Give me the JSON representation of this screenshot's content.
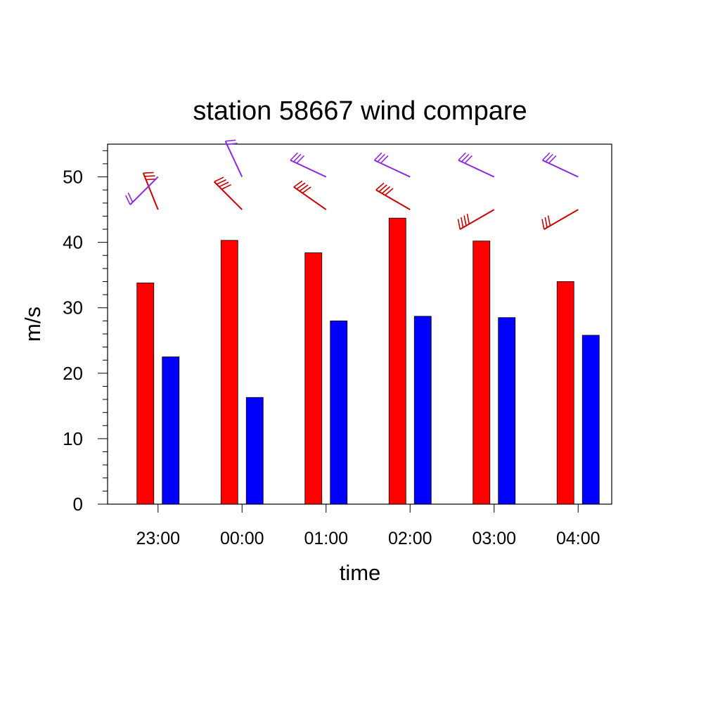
{
  "chart_data": {
    "type": "bar",
    "title": "station 58667 wind compare",
    "xlabel": "time",
    "ylabel": "m/s",
    "categories": [
      "23:00",
      "00:00",
      "01:00",
      "02:00",
      "03:00",
      "04:00"
    ],
    "ylim": [
      0,
      55
    ],
    "yticks": [
      0,
      10,
      20,
      30,
      40,
      50
    ],
    "grid": false,
    "legend": "none",
    "series": [
      {
        "color": "#ff0000",
        "values": [
          33.8,
          40.3,
          38.4,
          43.7,
          40.2,
          34.0
        ]
      },
      {
        "color": "#0000ff",
        "values": [
          22.5,
          16.3,
          28.0,
          28.7,
          28.5,
          25.8
        ]
      }
    ],
    "wind_barbs": [
      {
        "color": "#cc0000",
        "y": 45,
        "direction_deg": [
          338,
          315,
          305,
          300,
          240,
          240
        ],
        "speed": [
          33.8,
          40.3,
          38.4,
          43.7,
          40.2,
          34.0
        ]
      },
      {
        "color": "#8a2be2",
        "y": 50,
        "direction_deg": [
          225,
          335,
          295,
          295,
          295,
          295
        ],
        "speed": [
          22.5,
          16.3,
          28.0,
          28.7,
          28.5,
          25.8
        ]
      }
    ]
  }
}
